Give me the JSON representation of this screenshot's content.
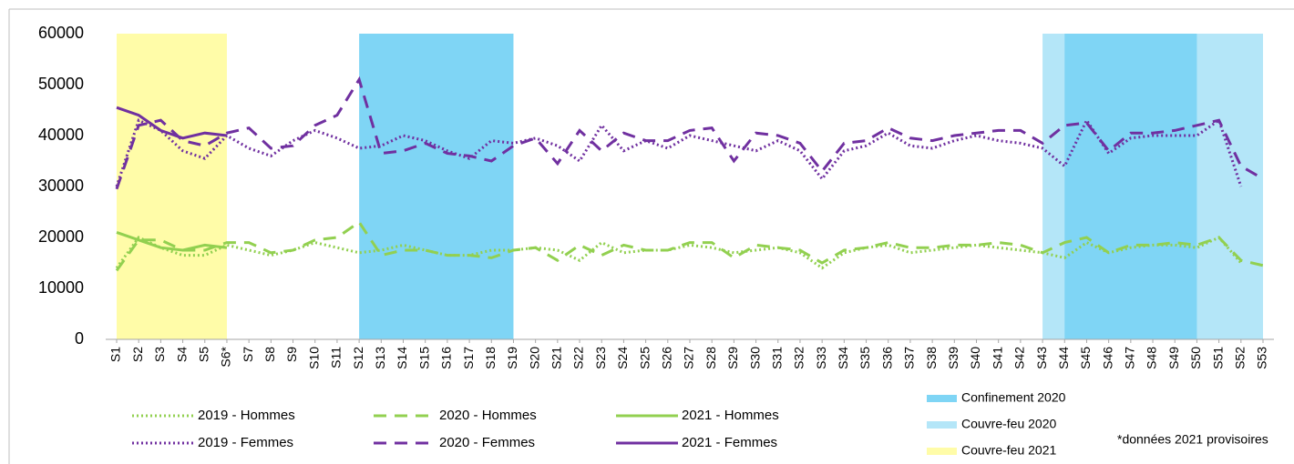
{
  "chart_data": {
    "type": "line",
    "categories": [
      "S1",
      "S2",
      "S3",
      "S4",
      "S5",
      "S6*",
      "S7",
      "S8",
      "S9",
      "S10",
      "S11",
      "S12",
      "S13",
      "S14",
      "S15",
      "S16",
      "S17",
      "S18",
      "S19",
      "S20",
      "S21",
      "S22",
      "S23",
      "S24",
      "S25",
      "S26",
      "S27",
      "S28",
      "S29",
      "S30",
      "S31",
      "S32",
      "S33",
      "S34",
      "S35",
      "S36",
      "S37",
      "S38",
      "S39",
      "S40",
      "S41",
      "S42",
      "S43",
      "S44",
      "S45",
      "S46",
      "S47",
      "S48",
      "S49",
      "S50",
      "S51",
      "S52",
      "S53"
    ],
    "ylim": [
      0,
      60000
    ],
    "yticks": [
      0,
      10000,
      20000,
      30000,
      40000,
      50000,
      60000
    ],
    "series": [
      {
        "name": "2019 - Hommes",
        "color": "#92d050",
        "style": "dotted",
        "values": [
          14000,
          20000,
          18000,
          16500,
          16500,
          18500,
          17500,
          16500,
          17500,
          19000,
          18000,
          17000,
          17500,
          18500,
          17500,
          16500,
          16500,
          17500,
          17500,
          18000,
          17500,
          15500,
          19000,
          17000,
          17500,
          17500,
          18500,
          18000,
          17000,
          17500,
          18000,
          17000,
          14000,
          17000,
          18000,
          18500,
          17000,
          17500,
          18000,
          18500,
          18000,
          17500,
          17000,
          16000,
          19000,
          17000,
          18000,
          18500,
          18500,
          18000,
          20000,
          15000,
          null
        ]
      },
      {
        "name": "2020 - Hommes",
        "color": "#92d050",
        "style": "dashed",
        "values": [
          13500,
          19500,
          19500,
          17500,
          17500,
          19000,
          19000,
          17000,
          17500,
          19500,
          20000,
          23000,
          16500,
          17500,
          17500,
          16500,
          16500,
          16000,
          17500,
          18000,
          15500,
          18500,
          16500,
          18500,
          17500,
          17500,
          19000,
          19000,
          16000,
          18500,
          18000,
          17500,
          15000,
          17500,
          18000,
          19000,
          18000,
          18000,
          18500,
          18500,
          19000,
          18500,
          17000,
          19000,
          20000,
          17000,
          18500,
          18500,
          19000,
          18500,
          20000,
          15500,
          14500
        ]
      },
      {
        "name": "2021 - Hommes",
        "color": "#92d050",
        "style": "solid",
        "values": [
          21000,
          19500,
          18000,
          17500,
          18500,
          18000,
          null,
          null,
          null,
          null,
          null,
          null,
          null,
          null,
          null,
          null,
          null,
          null,
          null,
          null,
          null,
          null,
          null,
          null,
          null,
          null,
          null,
          null,
          null,
          null,
          null,
          null,
          null,
          null,
          null,
          null,
          null,
          null,
          null,
          null,
          null,
          null,
          null,
          null,
          null,
          null,
          null,
          null,
          null,
          null,
          null,
          null,
          null
        ]
      },
      {
        "name": "2019 - Femmes",
        "color": "#7030a0",
        "style": "dotted",
        "values": [
          30000,
          43000,
          41000,
          37000,
          35500,
          40000,
          37500,
          36000,
          39000,
          41000,
          39500,
          37500,
          38000,
          40000,
          39000,
          37000,
          35500,
          39000,
          38500,
          39500,
          38000,
          35000,
          42000,
          37000,
          39000,
          37500,
          40000,
          39000,
          38000,
          37000,
          39000,
          37000,
          31500,
          37000,
          38000,
          40500,
          38000,
          37500,
          39000,
          40000,
          39000,
          38500,
          37500,
          34000,
          43000,
          36500,
          39500,
          40000,
          40000,
          40000,
          43000,
          30000,
          null
        ]
      },
      {
        "name": "2020 - Femmes",
        "color": "#7030a0",
        "style": "dashed",
        "values": [
          29500,
          42000,
          43000,
          39000,
          38000,
          40500,
          41500,
          37500,
          38000,
          42000,
          44000,
          51000,
          36500,
          37000,
          38500,
          36500,
          36000,
          35000,
          38000,
          39500,
          34500,
          41000,
          37000,
          40500,
          39000,
          39000,
          41000,
          41500,
          35000,
          40500,
          40000,
          38500,
          33000,
          38500,
          39000,
          41500,
          39500,
          39000,
          40000,
          40500,
          41000,
          41000,
          38500,
          42000,
          42500,
          37000,
          40500,
          40500,
          41000,
          42000,
          43000,
          34000,
          31500
        ]
      },
      {
        "name": "2021 - Femmes",
        "color": "#7030a0",
        "style": "solid",
        "values": [
          45500,
          44000,
          41000,
          39500,
          40500,
          40000,
          null,
          null,
          null,
          null,
          null,
          null,
          null,
          null,
          null,
          null,
          null,
          null,
          null,
          null,
          null,
          null,
          null,
          null,
          null,
          null,
          null,
          null,
          null,
          null,
          null,
          null,
          null,
          null,
          null,
          null,
          null,
          null,
          null,
          null,
          null,
          null,
          null,
          null,
          null,
          null,
          null,
          null,
          null,
          null,
          null,
          null,
          null
        ]
      }
    ],
    "regions": [
      {
        "name": "Confinement 2020",
        "color": "#7fd5f5",
        "spans": [
          [
            "S12",
            "S19"
          ],
          [
            "S44",
            "S50"
          ]
        ]
      },
      {
        "name": "Couvre-feu 2020",
        "color": "#b4e6f8",
        "spans": [
          [
            "S43",
            "S53"
          ]
        ]
      },
      {
        "name": "Couvre-feu 2021",
        "color": "#fffca8",
        "spans": [
          [
            "S1",
            "S6*"
          ]
        ]
      }
    ],
    "note": "*données 2021 provisoires"
  }
}
